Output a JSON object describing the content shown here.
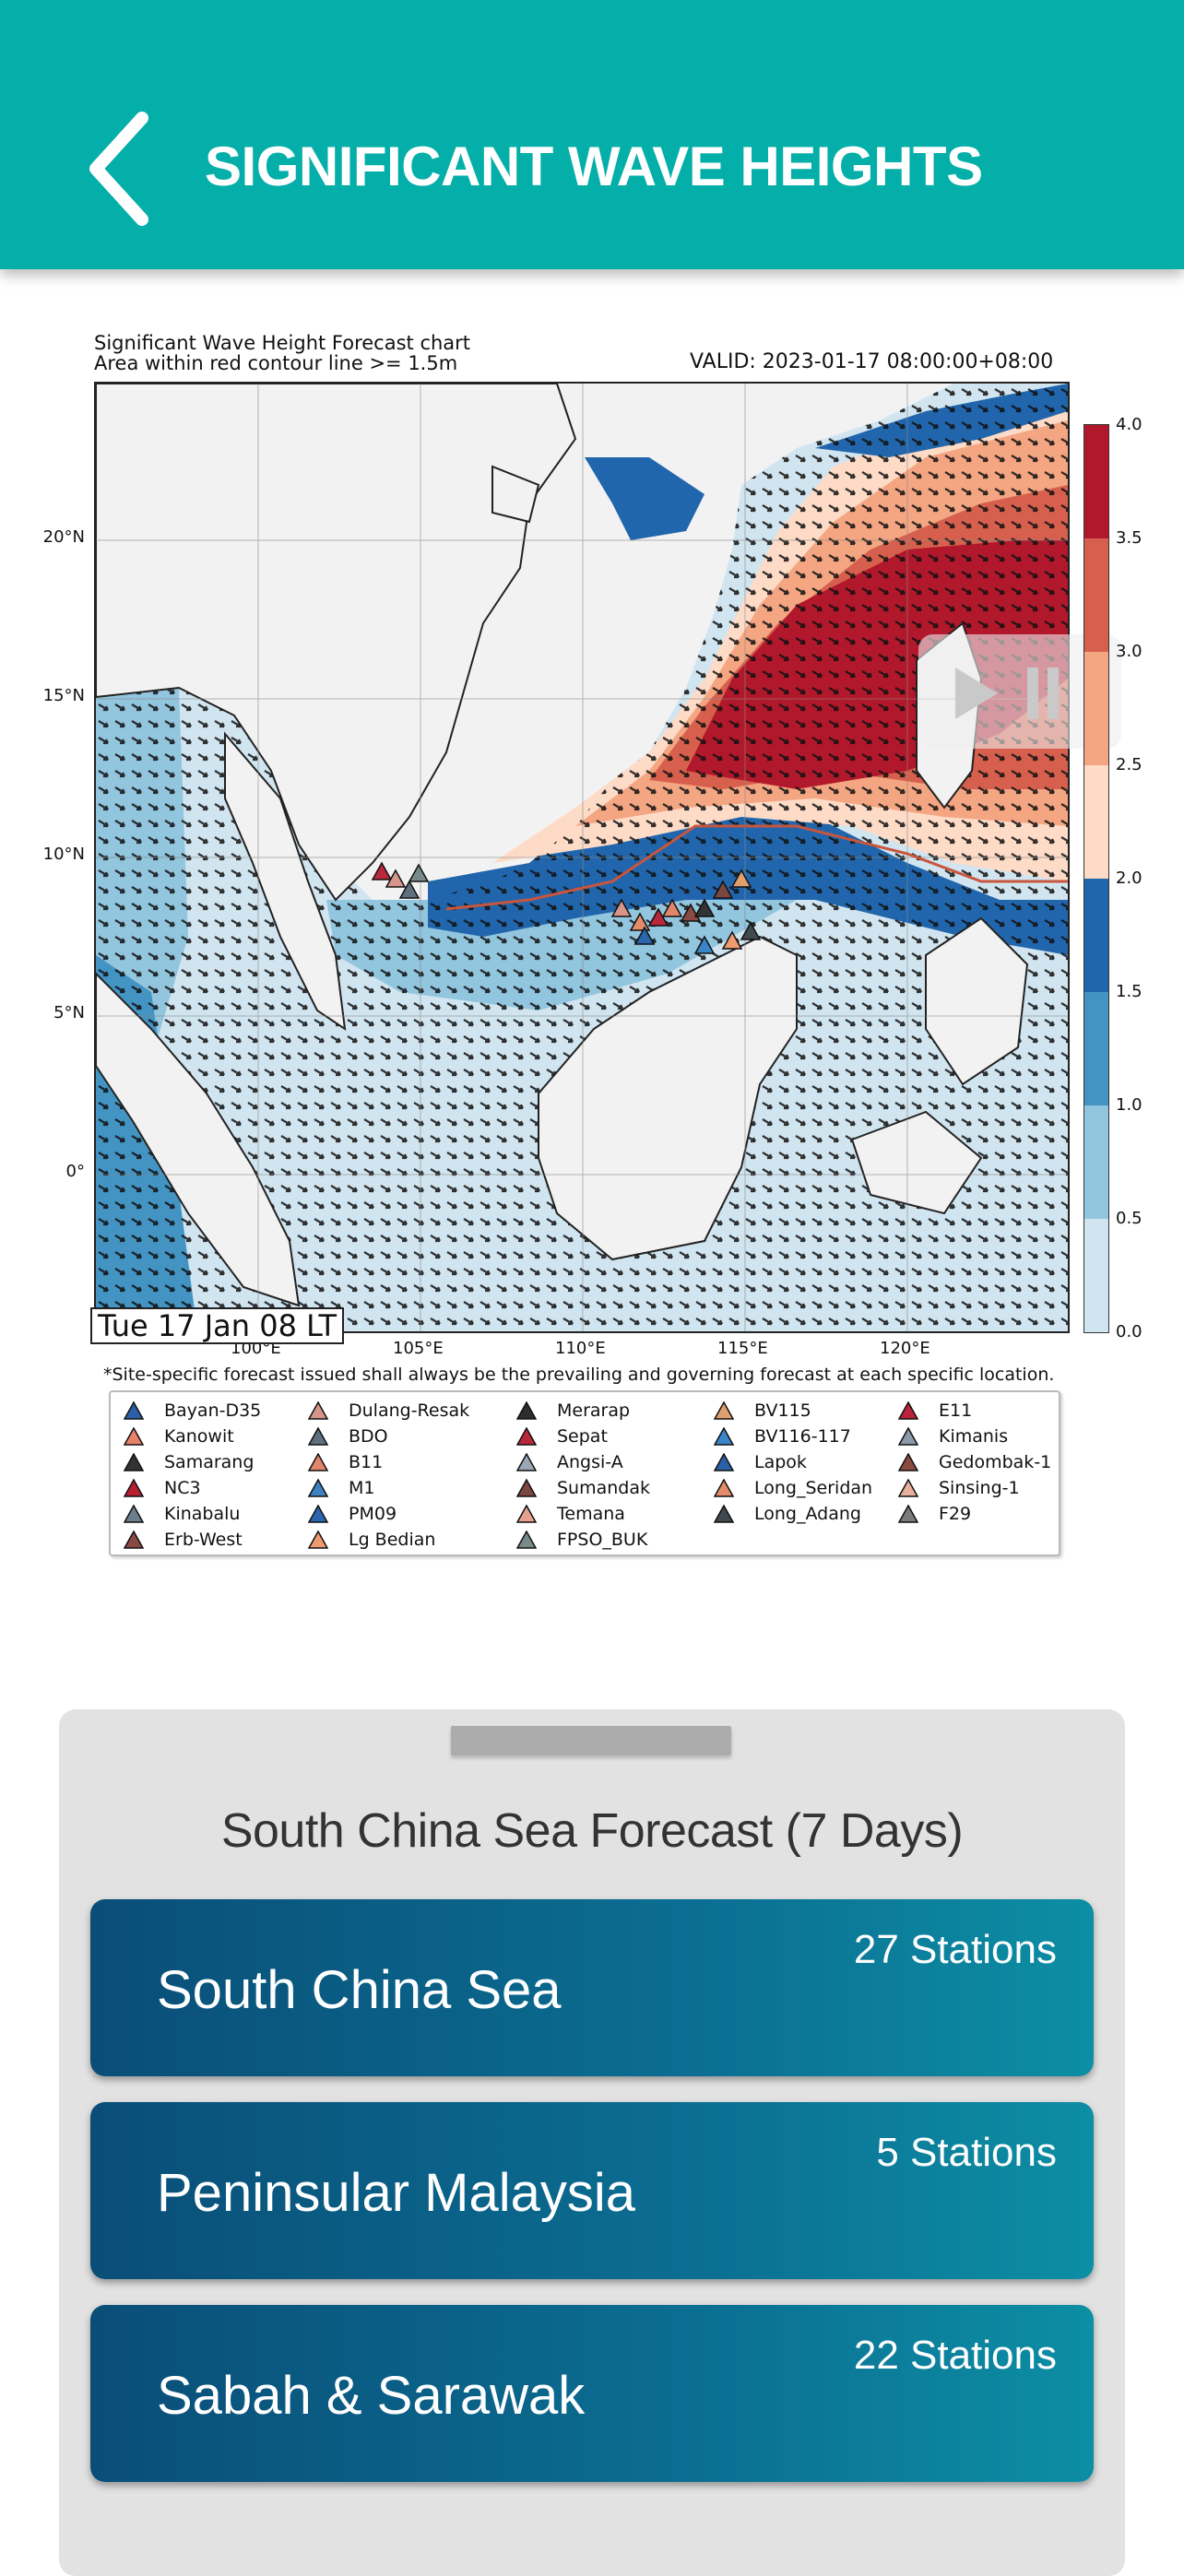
{
  "header": {
    "title": "SIGNIFICANT WAVE HEIGHTS",
    "bg_color": "#03afa8",
    "back_icon": "chevron-left-icon"
  },
  "chart": {
    "title_line1": "Significant Wave Height Forecast chart",
    "title_line2": "Area within red contour line >= 1.5m",
    "valid": "VALID: 2023-01-17 08:00:00+08:00",
    "date_label": "Tue 17 Jan 08 LT",
    "footnote": "*Site-specific forecast issued shall always be the prevailing and governing forecast at each specific location.",
    "lat_ticks": [
      "20°N",
      "15°N",
      "10°N",
      "5°N",
      "0°"
    ],
    "lon_ticks": [
      "100°E",
      "105°E",
      "110°E",
      "115°E",
      "120°E"
    ],
    "colorbar_ticks": [
      "4.0",
      "3.5",
      "3.0",
      "2.5",
      "2.0",
      "1.5",
      "1.0",
      "0.5",
      "0.0"
    ],
    "colorbar_colors": [
      "#b2182b",
      "#d6604d",
      "#f4a582",
      "#fddbc7",
      "#2166ac",
      "#4393c3",
      "#92c5de",
      "#d1e5f0"
    ],
    "legend": [
      "Bayan-D35",
      "Kanowit",
      "Samarang",
      "NC3",
      "Kinabalu",
      "Erb-West",
      "Dulang-Resak",
      "BDO",
      "B11",
      "M1",
      "PM09",
      "Lg Bedian",
      "Merarap",
      "Sepat",
      "Angsi-A",
      "Sumandak",
      "Temana",
      "FPSO_BUK",
      "BV115",
      "BV116-117",
      "Lapok",
      "Long_Seridan",
      "Long_Adang",
      "E11",
      "Kimanis",
      "Gedombak-1",
      "Sinsing-1",
      "F29"
    ],
    "legend_colors": [
      "#2b5fa8",
      "#e8826a",
      "#333333",
      "#b51f30",
      "#6d7f8c",
      "#8a4a44",
      "#d7958a",
      "#5f6f7f",
      "#e0866a",
      "#3f82c4",
      "#2b65b0",
      "#f09a70",
      "#2d2d2d",
      "#b8283a",
      "#9aa8b6",
      "#7a4840",
      "#e4a090",
      "#7a8a8a",
      "#e0a06e",
      "#3a85c8",
      "#2a60a8",
      "#e48c6a",
      "#404850",
      "#b8233a",
      "#8a9aa8",
      "#8a4a40",
      "#e8b09c",
      "#7a7a7a"
    ]
  },
  "panel": {
    "title": "South China Sea Forecast (7 Days)",
    "cards": [
      {
        "name": "South China Sea",
        "count": "27 Stations"
      },
      {
        "name": "Peninsular Malaysia",
        "count": "5 Stations"
      },
      {
        "name": "Sabah & Sarawak",
        "count": "22 Stations"
      }
    ]
  }
}
